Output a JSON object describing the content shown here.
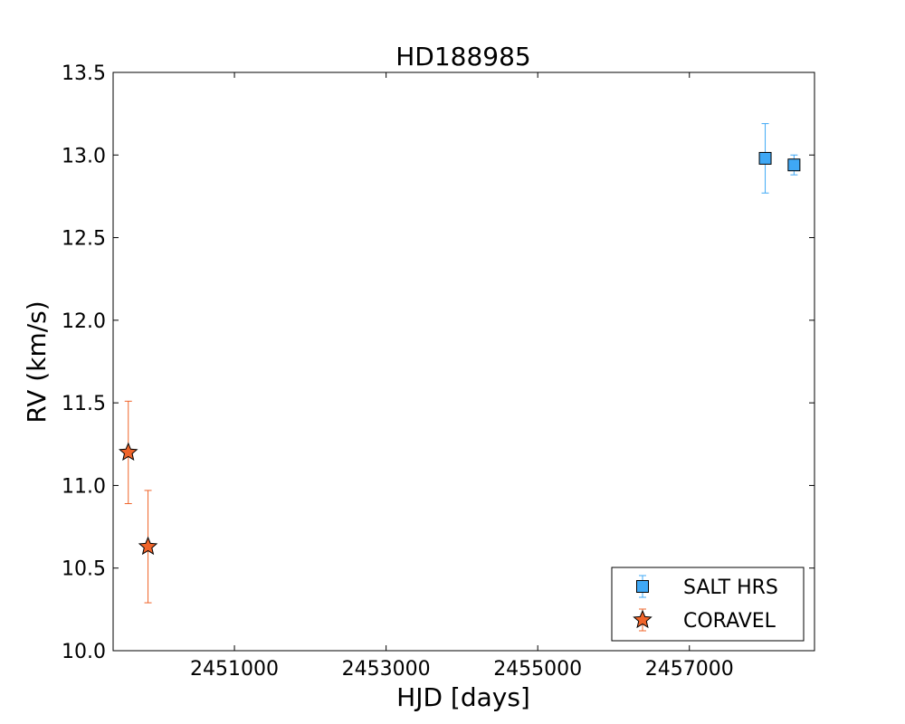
{
  "chart_data": {
    "type": "scatter",
    "title": "HD188985",
    "xlabel": "HJD [days]",
    "ylabel": "RV (km/s)",
    "xlim": [
      2449400,
      2458650
    ],
    "ylim": [
      10.0,
      13.5
    ],
    "xticks": [
      2451000,
      2453000,
      2455000,
      2457000
    ],
    "xtick_labels": [
      "2451000",
      "2453000",
      "2455000",
      "2457000"
    ],
    "yticks": [
      10.0,
      10.5,
      11.0,
      11.5,
      12.0,
      12.5,
      13.0,
      13.5
    ],
    "ytick_labels": [
      "10.0",
      "10.5",
      "11.0",
      "11.5",
      "12.0",
      "12.5",
      "13.0",
      "13.5"
    ],
    "grid": false,
    "legend_position": "lower-right",
    "series": [
      {
        "name": "SALT HRS",
        "marker": "square",
        "color": "#3fa8f5",
        "error_color": "#3fa8f5",
        "points": [
          {
            "x": 2458000,
            "y": 12.98,
            "err": 0.21
          },
          {
            "x": 2458380,
            "y": 12.94,
            "err": 0.06
          }
        ]
      },
      {
        "name": "CORAVEL",
        "marker": "star",
        "color": "#f0642a",
        "error_color": "#f0642a",
        "points": [
          {
            "x": 2449600,
            "y": 11.2,
            "err": 0.31
          },
          {
            "x": 2449860,
            "y": 10.63,
            "err": 0.34
          }
        ]
      }
    ]
  }
}
